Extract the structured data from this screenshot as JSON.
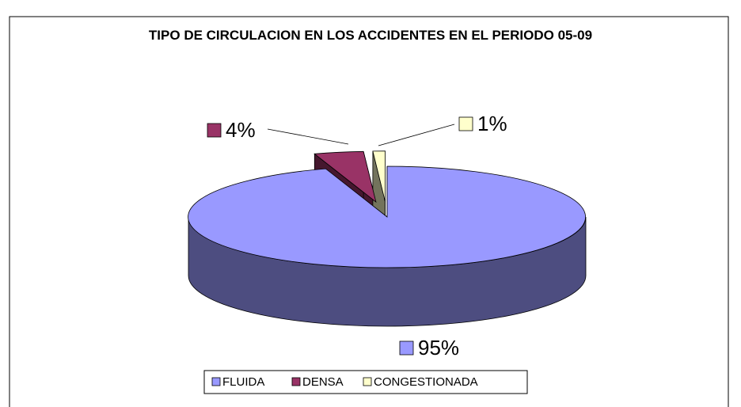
{
  "chart_data": {
    "type": "pie3d",
    "title": "TIPO DE CIRCULACION EN LOS ACCIDENTES EN EL PERIODO 05-09",
    "categories": [
      "FLUIDA",
      "DENSA",
      "CONGESTIONADA"
    ],
    "values": [
      95,
      4,
      1
    ],
    "value_labels": [
      "95%",
      "4%",
      "1%"
    ],
    "colors": [
      "#9999ff",
      "#993366",
      "#ffffcc"
    ],
    "legend": "bottom"
  }
}
